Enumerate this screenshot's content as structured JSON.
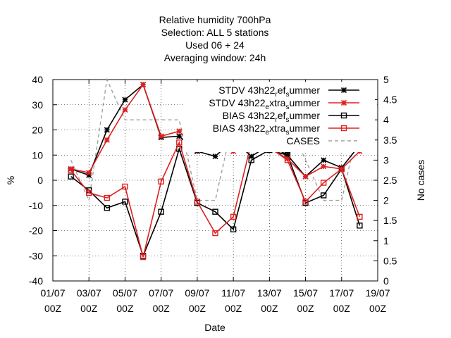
{
  "chart_data": {
    "type": "line",
    "title_lines": [
      "Relative humidity 700hPa",
      "Selection: ALL       5 stations",
      "Used  06  + 24",
      "Averaging window: 24h"
    ],
    "xlabel": "Date",
    "ylabel": "%",
    "y2label": "No cases",
    "x_ticks": [
      {
        "day": 1,
        "top": "01/07",
        "bottom": "00Z"
      },
      {
        "day": 3,
        "top": "03/07",
        "bottom": "00Z"
      },
      {
        "day": 5,
        "top": "05/07",
        "bottom": "00Z"
      },
      {
        "day": 7,
        "top": "07/07",
        "bottom": "00Z"
      },
      {
        "day": 9,
        "top": "09/07",
        "bottom": "00Z"
      },
      {
        "day": 11,
        "top": "11/07",
        "bottom": "00Z"
      },
      {
        "day": 13,
        "top": "13/07",
        "bottom": "00Z"
      },
      {
        "day": 15,
        "top": "15/07",
        "bottom": "00Z"
      },
      {
        "day": 17,
        "top": "17/07",
        "bottom": "00Z"
      },
      {
        "day": 19,
        "top": "19/07",
        "bottom": "00Z"
      }
    ],
    "xlim": [
      1,
      19
    ],
    "ylim": [
      -40,
      40
    ],
    "y2lim": [
      0,
      5
    ],
    "y_ticks": [
      -40,
      -30,
      -20,
      -10,
      0,
      10,
      20,
      30,
      40
    ],
    "y2_ticks": [
      "0",
      "0.5",
      "1",
      "1.5",
      "2",
      "2.5",
      "3",
      "3.5",
      "4",
      "4.5",
      "5"
    ],
    "grid": true,
    "legend_position": "top-right",
    "series": [
      {
        "name": "STDV 43h22_ref_summer",
        "legend_parts": [
          [
            "STDV 43h22",
            ""
          ],
          [
            "r",
            "sub"
          ],
          [
            "ef",
            ""
          ],
          [
            "s",
            "sub"
          ],
          [
            "ummer",
            ""
          ]
        ],
        "color": "#000000",
        "marker": "star",
        "axis": "y1",
        "x": [
          2,
          3,
          4,
          5,
          6,
          7,
          8,
          9,
          10,
          11,
          12,
          13,
          14,
          15,
          16,
          17,
          18
        ],
        "y": [
          4.5,
          2,
          20,
          32,
          38,
          17,
          17.5,
          11.5,
          9.5,
          16,
          9.5,
          14,
          10,
          1.5,
          8,
          5,
          14
        ]
      },
      {
        "name": "STDV 43h22_extra_summer",
        "legend_parts": [
          [
            "STDV 43h22",
            ""
          ],
          [
            "e",
            "sub"
          ],
          [
            "xtra",
            ""
          ],
          [
            "s",
            "sub"
          ],
          [
            "ummer",
            ""
          ]
        ],
        "color": "#dd2020",
        "marker": "star",
        "axis": "y1",
        "x": [
          2,
          3,
          4,
          5,
          6,
          7,
          8,
          9,
          10,
          11,
          12,
          13,
          14,
          15,
          16,
          17,
          18
        ],
        "y": [
          4.5,
          3,
          16,
          28,
          38,
          17.5,
          19.5,
          12,
          17.5,
          11.5,
          15,
          13,
          8.5,
          1.5,
          5.5,
          4.5,
          11.5
        ]
      },
      {
        "name": "BIAS 43h22_ref_summer",
        "legend_parts": [
          [
            "BIAS 43h22",
            ""
          ],
          [
            "r",
            "sub"
          ],
          [
            "ef",
            ""
          ],
          [
            "s",
            "sub"
          ],
          [
            "ummer",
            ""
          ]
        ],
        "color": "#000000",
        "marker": "square",
        "axis": "y1",
        "x": [
          2,
          3,
          4,
          5,
          6,
          7,
          8,
          9,
          10,
          11,
          12,
          13,
          14,
          15,
          16,
          17,
          18
        ],
        "y": [
          1.5,
          -4,
          -11,
          -8.5,
          -30,
          -12.5,
          12.5,
          -9,
          -12.5,
          -19.5,
          8,
          12,
          10,
          -9,
          -6,
          4.5,
          -18
        ]
      },
      {
        "name": "BIAS 43h22_extra_summer",
        "legend_parts": [
          [
            "BIAS 43h22",
            ""
          ],
          [
            "e",
            "sub"
          ],
          [
            "xtra",
            ""
          ],
          [
            "s",
            "sub"
          ],
          [
            "ummer",
            ""
          ]
        ],
        "color": "#dd2020",
        "marker": "square",
        "axis": "y1",
        "x": [
          2,
          3,
          4,
          5,
          6,
          7,
          8,
          9,
          10,
          11,
          12,
          13,
          14,
          15,
          16,
          17,
          18
        ],
        "y": [
          4,
          -5,
          -7,
          -2.5,
          -30.5,
          -0.5,
          15,
          -8.5,
          -21,
          -14.5,
          15,
          13,
          8,
          -8.5,
          -1,
          4.5,
          -14.5
        ]
      },
      {
        "name": "CASES",
        "legend_parts": [
          [
            "CASES",
            ""
          ]
        ],
        "color": "#a0a0a0",
        "marker": "none",
        "dashed": true,
        "axis": "y2",
        "x": [
          2,
          3,
          4,
          5,
          6,
          7,
          8,
          9,
          10,
          11,
          12,
          13,
          14,
          15,
          16,
          17,
          18
        ],
        "y": [
          3,
          2,
          5,
          4,
          4,
          4,
          4,
          2,
          2,
          4,
          4,
          4,
          4,
          3,
          2,
          2,
          4
        ]
      }
    ]
  }
}
